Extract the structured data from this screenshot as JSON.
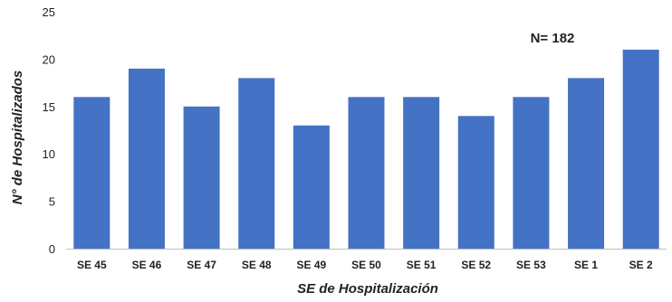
{
  "chart_data": {
    "type": "bar",
    "categories": [
      "SE 45",
      "SE 46",
      "SE 47",
      "SE 48",
      "SE 49",
      "SE 50",
      "SE 51",
      "SE 52",
      "SE 53",
      "SE 1",
      "SE 2"
    ],
    "values": [
      16,
      19,
      15,
      18,
      13,
      16,
      16,
      14,
      16,
      18,
      21
    ],
    "xlabel": "SE de Hospitalización",
    "ylabel": "N° de Hospitalizados",
    "ylim": [
      0,
      25
    ],
    "yticks": [
      "0",
      "5",
      "10",
      "15",
      "20",
      "25"
    ],
    "annotation": "N= 182",
    "grid": false,
    "bar_color": "#4472C4",
    "axis_color": "#BFBFBF"
  }
}
